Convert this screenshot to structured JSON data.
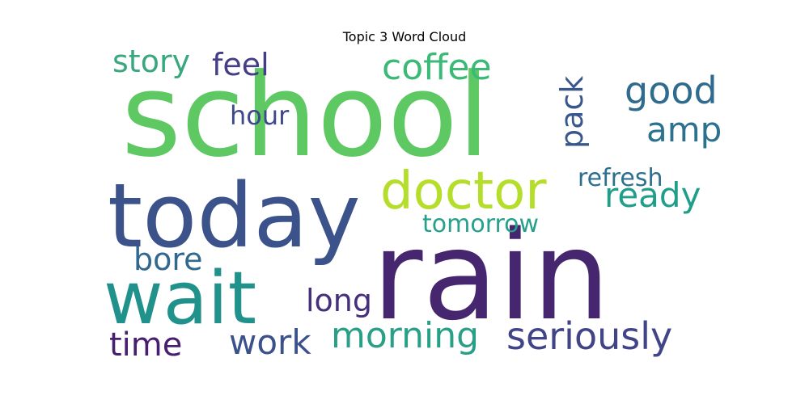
{
  "chart_data": {
    "type": "wordcloud",
    "title": "Topic 3 Word Cloud",
    "words": [
      {
        "text": "school",
        "color": "#5ec962"
      },
      {
        "text": "rain",
        "color": "#46266e"
      },
      {
        "text": "today",
        "color": "#3b528b"
      },
      {
        "text": "wait",
        "color": "#21918c"
      },
      {
        "text": "doctor",
        "color": "#b5de2b"
      },
      {
        "text": "coffee",
        "color": "#3aba76"
      },
      {
        "text": "seriously",
        "color": "#414487"
      },
      {
        "text": "morning",
        "color": "#2a9f88"
      },
      {
        "text": "story",
        "color": "#3aa87f"
      },
      {
        "text": "feel",
        "color": "#433e85"
      },
      {
        "text": "good",
        "color": "#2f6b8e"
      },
      {
        "text": "ready",
        "color": "#1f9e89"
      },
      {
        "text": "amp",
        "color": "#2c728e"
      },
      {
        "text": "pack",
        "color": "#38588c"
      },
      {
        "text": "hour",
        "color": "#3e4989"
      },
      {
        "text": "refresh",
        "color": "#2d708e"
      },
      {
        "text": "tomorrow",
        "color": "#25a18a"
      },
      {
        "text": "bore",
        "color": "#31688e"
      },
      {
        "text": "long",
        "color": "#462f7c"
      },
      {
        "text": "time",
        "color": "#481f70"
      },
      {
        "text": "work",
        "color": "#3b518b"
      }
    ]
  }
}
